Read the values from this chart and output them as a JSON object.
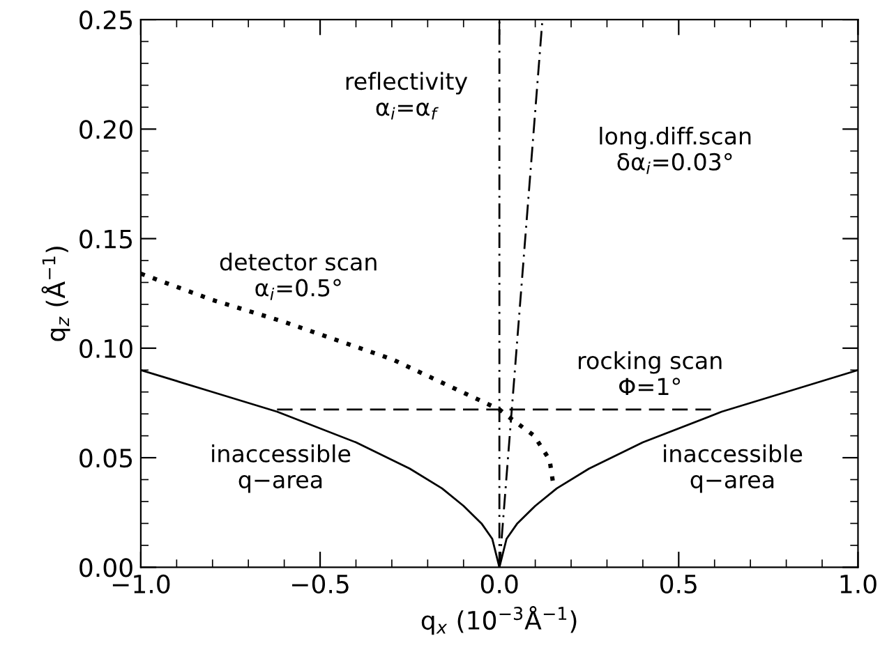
{
  "chart_data": {
    "type": "line",
    "xlabel": "q$_{x}$ (10$^{−3}$Å$^{−1}$)",
    "ylabel": "q$_{z}$ (Å$^{−1}$)",
    "xlim": [
      -1.0,
      1.0
    ],
    "ylim": [
      0.0,
      0.25
    ],
    "xticks": [
      {
        "value": -1.0,
        "label": "−1.0"
      },
      {
        "value": -0.5,
        "label": "−0.5"
      },
      {
        "value": 0.0,
        "label": "0.0"
      },
      {
        "value": 0.5,
        "label": "0.5"
      },
      {
        "value": 1.0,
        "label": "1.0"
      }
    ],
    "yticks": [
      {
        "value": 0.0,
        "label": "0.00"
      },
      {
        "value": 0.05,
        "label": "0.05"
      },
      {
        "value": 0.1,
        "label": "0.10"
      },
      {
        "value": 0.15,
        "label": "0.15"
      },
      {
        "value": 0.2,
        "label": "0.20"
      },
      {
        "value": 0.25,
        "label": "0.25"
      }
    ],
    "grid": false,
    "series": [
      {
        "color": "#000000",
        "line_style": "solid",
        "x": [
          -1.0,
          -0.8,
          -0.62,
          -0.4,
          -0.25,
          -0.16,
          -0.1,
          -0.05,
          -0.02,
          0.0,
          0.02,
          0.05,
          0.1,
          0.16,
          0.25,
          0.4,
          0.62,
          0.8,
          1.0
        ],
        "values": [
          0.09,
          0.08,
          0.071,
          0.057,
          0.045,
          0.036,
          0.028,
          0.02,
          0.013,
          0.0,
          0.013,
          0.02,
          0.028,
          0.036,
          0.045,
          0.057,
          0.071,
          0.08,
          0.09
        ]
      },
      {
        "color": "#000000",
        "line_style": "dotted",
        "x": [
          -1.0,
          -0.8,
          -0.6,
          -0.3,
          0.0,
          0.031,
          0.097,
          0.14,
          0.152
        ],
        "values": [
          0.134,
          0.122,
          0.112,
          0.095,
          0.072,
          0.068,
          0.06,
          0.049,
          0.036
        ]
      },
      {
        "color": "#000000",
        "line_style": "dashed",
        "x": [
          -0.62,
          0.6
        ],
        "values": [
          0.072,
          0.072
        ]
      },
      {
        "color": "#000000",
        "line_style": "dashdot",
        "x": [
          0.0,
          0.12
        ],
        "values": [
          0.0,
          0.25
        ]
      }
    ],
    "ref_lines": [
      {
        "axis": "x",
        "value": 0.0,
        "color": "#000000",
        "line_style": "dashdot"
      }
    ],
    "annotations": [
      "reflectivity\nα$_{i}$=α$_{f}$",
      "long.diff.scan\nδα$_{i}$=0.03°",
      "detector scan\nα$_{i}$=0.5°",
      "rocking scan\nΦ=1°",
      "inaccessible\nq−area",
      "inaccessible\nq−area"
    ]
  }
}
